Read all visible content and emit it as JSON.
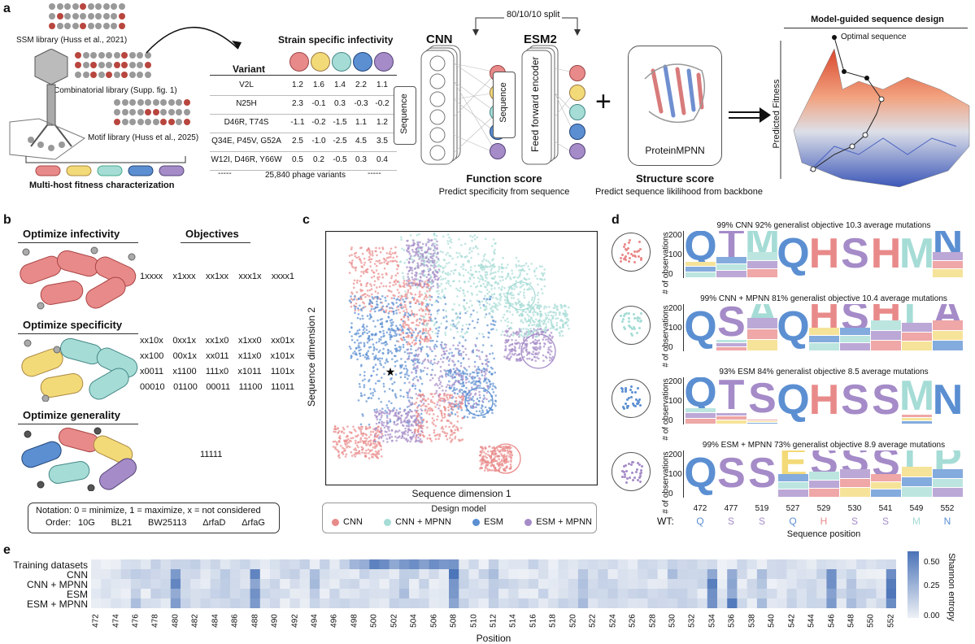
{
  "colors": {
    "red": "#e98a8a",
    "yellow": "#f3da78",
    "teal": "#a6dcd6",
    "blue": "#5b8fd2",
    "purple": "#a58bc8"
  },
  "panel_a": {
    "label": "a",
    "lib_ssm": "SSM library (Huss et al., 2021)",
    "lib_comb": "Combinatorial library (Supp. fig. 1)",
    "lib_motif": "Motif library (Huss et al., 2025)",
    "multi_host": "Multi-host fitness characterization",
    "split": "80/10/10 split",
    "strain_title": "Strain specific infectivity",
    "variant_header": "Variant",
    "rows": [
      {
        "variant": "V2L",
        "values": [
          "1.2",
          "1.6",
          "1.4",
          "2.2",
          "1.1"
        ]
      },
      {
        "variant": "N25H",
        "values": [
          "2.3",
          "-0.1",
          "0.3",
          "-0.3",
          "-0.2"
        ]
      },
      {
        "variant": "D46R, T74S",
        "values": [
          "-1.1",
          "-0.2",
          "-1.5",
          "1.1",
          "1.2"
        ]
      },
      {
        "variant": "Q34E, P45V, G52A",
        "values": [
          "2.5",
          "-1.0",
          "-2.5",
          "4.5",
          "3.5"
        ]
      },
      {
        "variant": "W12I, D46R, Y66W",
        "values": [
          "0.5",
          "0.2",
          "-0.5",
          "0.3",
          "0.4"
        ]
      }
    ],
    "dash_left": "-----",
    "variants_count": "25,840 phage variants",
    "dash_right": "-----",
    "cnn_title": "CNN",
    "esm_title": "ESM2",
    "sequence_label": "Sequence",
    "ffe_label": "Feed forward encoder",
    "plus": "+",
    "proteinmpnn": "ProteinMPNN",
    "function_score": "Function score",
    "function_sub": "Predict specificity from sequence",
    "structure_score": "Structure score",
    "structure_sub": "Predict sequence likilihood from backbone",
    "design_title": "Model-guided sequence design",
    "optimal": "Optimal sequence",
    "predicted_fitness": "Predicted Fitness"
  },
  "panel_b": {
    "label": "b",
    "objectives_title": "Objectives",
    "infectivity_title": "Optimize infectivity",
    "infectivity_obj": [
      "1xxxx",
      "x1xxx",
      "xx1xx",
      "xxx1x",
      "xxxx1"
    ],
    "specificity_title": "Optimize specificity",
    "specificity_obj": [
      [
        "xx10x",
        "0xx1x",
        "xx1x0",
        "x1xx0",
        "xx01x"
      ],
      [
        "xx100",
        "00x1x",
        "xx011",
        "x11x0",
        "x101x"
      ],
      [
        "x0011",
        "x1100",
        "111x0",
        "x1011",
        "1101x"
      ],
      [
        "00010",
        "01100",
        "00011",
        "11100",
        "11011"
      ]
    ],
    "generality_title": "Optimize generality",
    "generality_obj": "11111",
    "notation": "Notation:  0 = minimize, 1 = maximize, x = not considered",
    "order_label": "Order:",
    "order": [
      "10G",
      "BL21",
      "BW25113",
      "ΔrfaD",
      "ΔrfaG"
    ]
  },
  "panel_c": {
    "label": "c",
    "xlabel": "Sequence dimension 1",
    "ylabel": "Sequence dimension 2",
    "legend_title": "Design model",
    "legend": [
      {
        "name": "CNN",
        "color": "#e98a8a"
      },
      {
        "name": "CNN + MPNN",
        "color": "#a6dcd6"
      },
      {
        "name": "ESM",
        "color": "#5b8fd2"
      },
      {
        "name": "ESM + MPNN",
        "color": "#a58bc8"
      }
    ]
  },
  "panel_d": {
    "label": "d",
    "ylabel": "# of observations",
    "yticks": [
      "0",
      "100",
      "200"
    ],
    "logos": [
      {
        "title": "99% CNN 92% generalist objective 10.3 average mutations",
        "letters": [
          "Q",
          "T",
          "M",
          "Q",
          "H",
          "S",
          "H",
          "M",
          "N"
        ],
        "colors": [
          "blue",
          "purple",
          "teal",
          "blue",
          "red",
          "purple",
          "red",
          "teal",
          "blue"
        ],
        "fill": [
          0.65,
          0.55,
          0.45,
          0.95,
          0.95,
          0.95,
          0.95,
          0.95,
          0.45
        ]
      },
      {
        "title": "99% CNN + MPNN 81% generalist objective 10.4 average mutations",
        "letters": [
          "Q",
          "S",
          "A",
          "Q",
          "H",
          "S",
          "H",
          "L",
          "A"
        ],
        "colors": [
          "blue",
          "purple",
          "teal",
          "blue",
          "red",
          "purple",
          "red",
          "teal",
          "purple"
        ],
        "fill": [
          0.95,
          0.75,
          0.3,
          0.95,
          0.5,
          0.5,
          0.35,
          0.4,
          0.35
        ]
      },
      {
        "title": "93% ESM 84% generalist objective 8.5 average mutations",
        "letters": [
          "Q",
          "T",
          "S",
          "Q",
          "H",
          "S",
          "S",
          "M",
          "N"
        ],
        "colors": [
          "blue",
          "purple",
          "purple",
          "blue",
          "red",
          "purple",
          "purple",
          "teal",
          "blue"
        ],
        "fill": [
          0.65,
          0.75,
          0.9,
          0.95,
          0.95,
          0.95,
          0.95,
          0.8,
          0.95
        ]
      },
      {
        "title": "99% ESM + MPNN 73% generalist objective 8.9 average mutations",
        "letters": [
          "Q",
          "S",
          "S",
          "E",
          "S",
          "S",
          "S",
          "L",
          "P"
        ],
        "colors": [
          "blue",
          "purple",
          "purple",
          "yellow",
          "purple",
          "purple",
          "purple",
          "teal",
          "teal"
        ],
        "fill": [
          0.95,
          0.95,
          0.95,
          0.5,
          0.45,
          0.4,
          0.5,
          0.35,
          0.4
        ]
      }
    ],
    "positions": [
      "472",
      "477",
      "519",
      "527",
      "529",
      "530",
      "541",
      "549",
      "552"
    ],
    "wt_label": "WT:",
    "wt": [
      "Q",
      "S",
      "S",
      "Q",
      "H",
      "S",
      "S",
      "M",
      "N"
    ],
    "wt_colors": [
      "blue",
      "purple",
      "purple",
      "blue",
      "red",
      "purple",
      "purple",
      "teal",
      "blue"
    ],
    "xlabel": "Sequence position"
  },
  "panel_e": {
    "label": "e",
    "rows": [
      "Training datasets",
      "CNN",
      "CNN + MPNN",
      "ESM",
      "ESM + MPNN"
    ],
    "xlabel": "Position",
    "xticks": [
      "472",
      "474",
      "476",
      "478",
      "480",
      "482",
      "484",
      "486",
      "488",
      "490",
      "492",
      "494",
      "496",
      "498",
      "500",
      "502",
      "504",
      "506",
      "508",
      "510",
      "512",
      "514",
      "516",
      "518",
      "520",
      "522",
      "524",
      "526",
      "528",
      "530",
      "532",
      "534",
      "536",
      "538",
      "540",
      "542",
      "544",
      "546",
      "548",
      "550",
      "552"
    ],
    "cbar_label": "Shannon entropy",
    "cbar_ticks": [
      "0.50",
      "0.25",
      "0.00"
    ]
  }
}
